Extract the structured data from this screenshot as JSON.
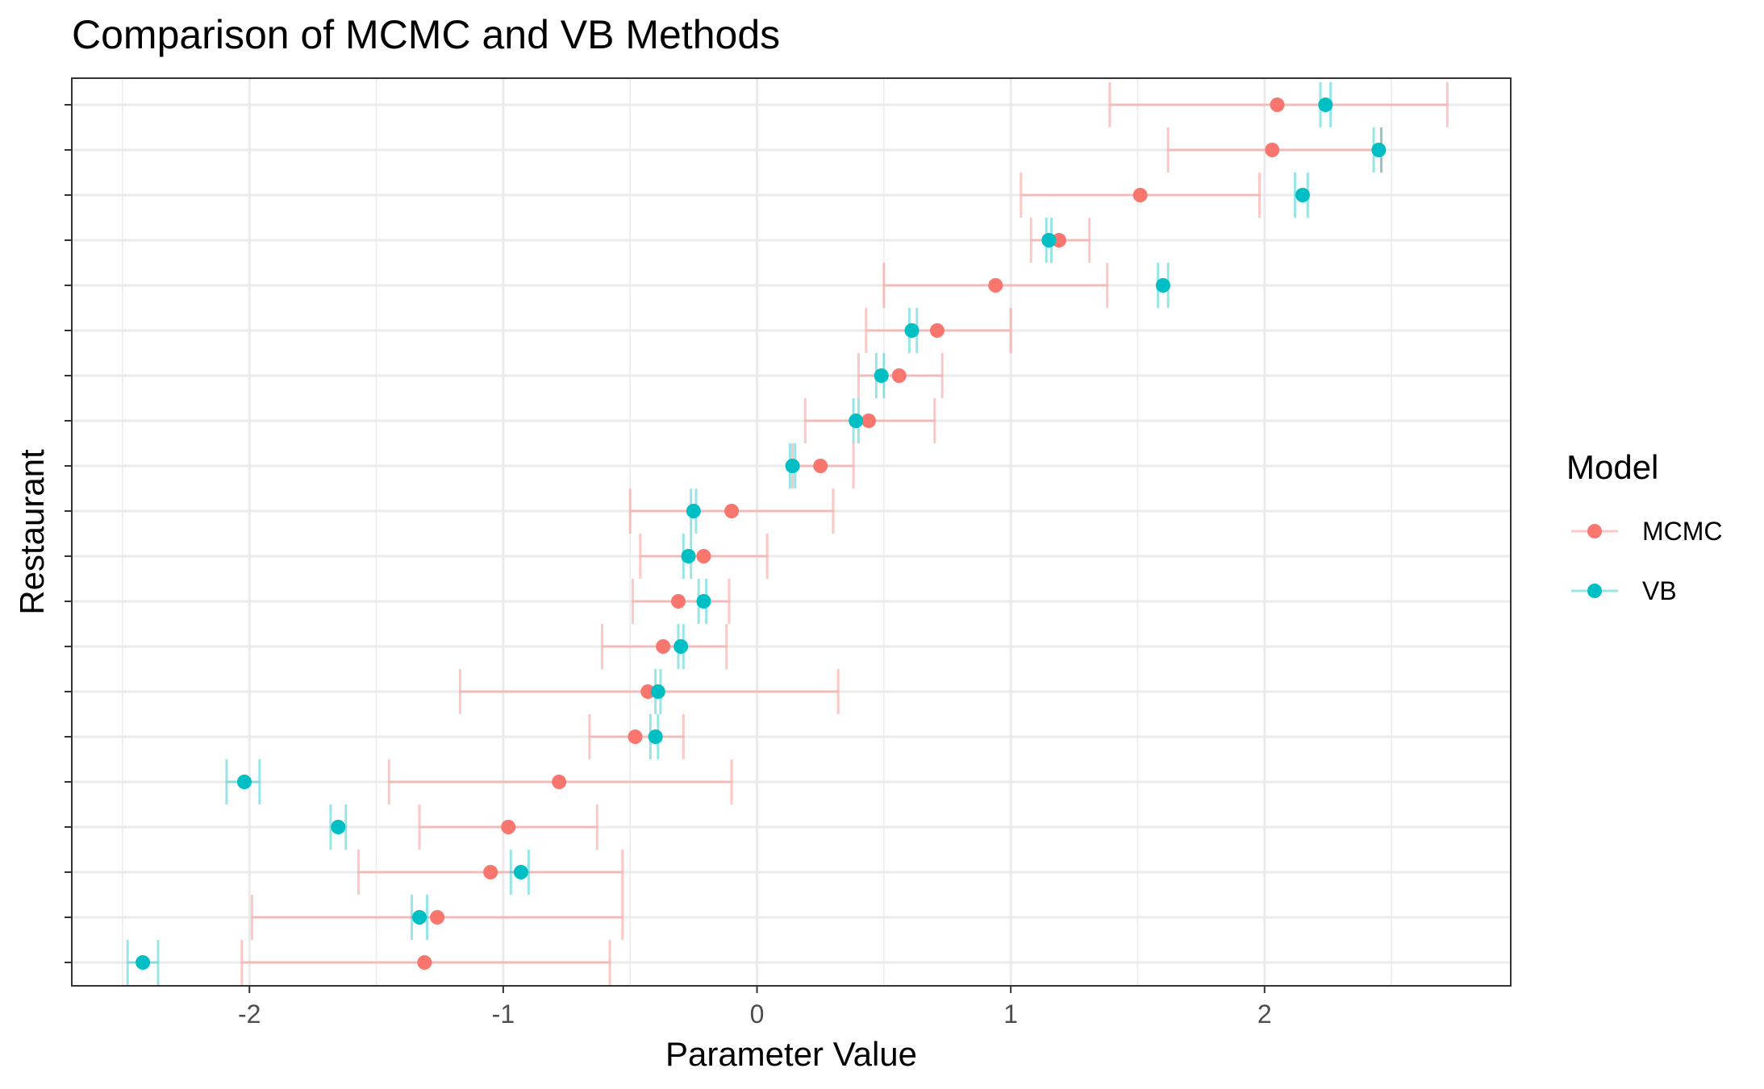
{
  "chart_data": {
    "type": "scatter",
    "title": "Comparison of MCMC and VB Methods",
    "xlabel": "Parameter Value",
    "ylabel": "Restaurant",
    "xlim": [
      -2.7,
      2.97
    ],
    "x_ticks": [
      -2,
      -1,
      0,
      1,
      2
    ],
    "x_tick_labels": [
      "-2",
      "-1",
      "0",
      "1",
      "2"
    ],
    "grid": true,
    "legend": {
      "title": "Model",
      "position": "right",
      "entries": [
        {
          "label": "MCMC",
          "color": "#F8766D"
        },
        {
          "label": "VB",
          "color": "#00BFC4"
        }
      ]
    },
    "series": [
      {
        "name": "MCMC",
        "color": "#F8766D",
        "estimates": [
          2.05,
          2.03,
          1.51,
          1.19,
          0.94,
          0.71,
          0.56,
          0.44,
          0.25,
          -0.1,
          -0.21,
          -0.31,
          -0.37,
          -0.43,
          -0.48,
          -0.78,
          -0.98,
          -1.05,
          -1.26,
          -1.31
        ],
        "lower": [
          1.39,
          1.62,
          1.04,
          1.08,
          0.5,
          0.43,
          0.4,
          0.19,
          0.14,
          -0.5,
          -0.46,
          -0.49,
          -0.61,
          -1.17,
          -0.66,
          -1.45,
          -1.33,
          -1.57,
          -1.99,
          -2.03
        ],
        "upper": [
          2.72,
          2.46,
          1.98,
          1.31,
          1.38,
          1.0,
          0.73,
          0.7,
          0.38,
          0.3,
          0.04,
          -0.11,
          -0.12,
          0.32,
          -0.29,
          -0.1,
          -0.63,
          -0.53,
          -0.53,
          -0.58
        ]
      },
      {
        "name": "VB",
        "color": "#00BFC4",
        "estimates": [
          2.24,
          2.45,
          2.15,
          1.15,
          1.6,
          0.61,
          0.49,
          0.39,
          0.14,
          -0.25,
          -0.27,
          -0.21,
          -0.3,
          -0.39,
          -0.4,
          -2.02,
          -1.65,
          -0.93,
          -1.33,
          -2.42
        ],
        "lower": [
          2.22,
          2.43,
          2.12,
          1.14,
          1.58,
          0.6,
          0.47,
          0.38,
          0.13,
          -0.26,
          -0.29,
          -0.23,
          -0.31,
          -0.4,
          -0.42,
          -2.09,
          -1.68,
          -0.97,
          -1.36,
          -2.48
        ],
        "upper": [
          2.26,
          2.46,
          2.17,
          1.16,
          1.62,
          0.63,
          0.5,
          0.4,
          0.15,
          -0.24,
          -0.26,
          -0.2,
          -0.29,
          -0.38,
          -0.39,
          -1.96,
          -1.62,
          -0.9,
          -1.3,
          -2.36
        ]
      }
    ]
  }
}
